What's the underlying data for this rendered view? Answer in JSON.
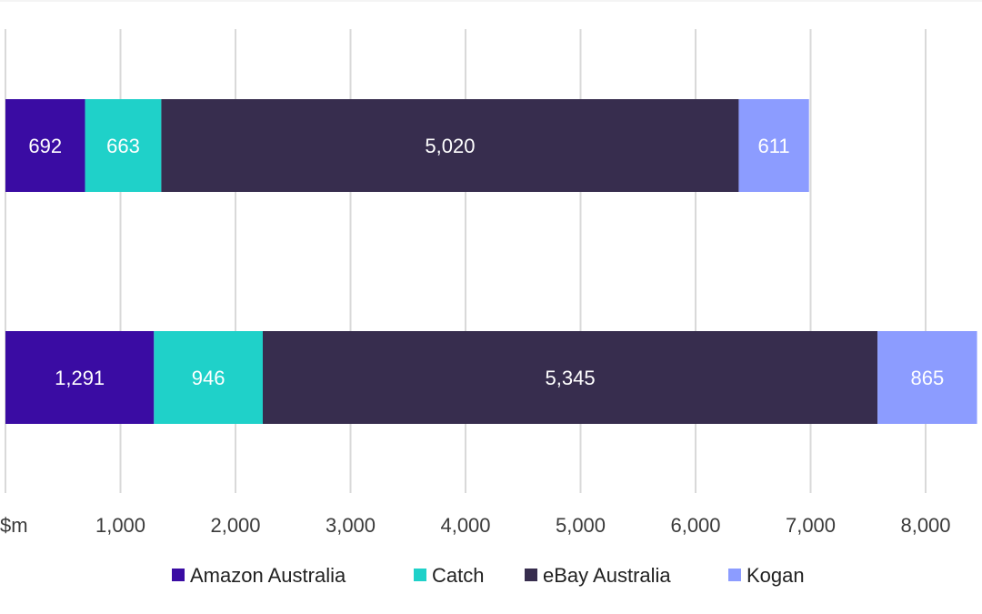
{
  "chart_data": {
    "type": "bar",
    "orientation": "horizontal",
    "stacked": true,
    "title": "",
    "xlabel": "",
    "ylabel": "",
    "xlim": [
      0,
      8500
    ],
    "x_ticks": [
      0,
      1000,
      2000,
      3000,
      4000,
      5000,
      6000,
      7000,
      8000
    ],
    "x_tick_labels": [
      "$m",
      "1,000",
      "2,000",
      "3,000",
      "4,000",
      "5,000",
      "6,000",
      "7,000",
      "8,000"
    ],
    "categories": [
      "",
      ""
    ],
    "series": [
      {
        "name": "Amazon Australia",
        "color": "#3a0ca3",
        "values": [
          692,
          1291
        ],
        "labels": [
          "692",
          "1,291"
        ]
      },
      {
        "name": "Catch",
        "color": "#1fd1c9",
        "values": [
          663,
          946
        ],
        "labels": [
          "663",
          "946"
        ]
      },
      {
        "name": "eBay Australia",
        "color": "#372d4e",
        "values": [
          5020,
          5345
        ],
        "labels": [
          "5,020",
          "5,345"
        ]
      },
      {
        "name": "Kogan",
        "color": "#8c9cff",
        "values": [
          611,
          865
        ],
        "labels": [
          "611",
          "865"
        ]
      }
    ],
    "grid": true,
    "legend_position": "bottom"
  }
}
